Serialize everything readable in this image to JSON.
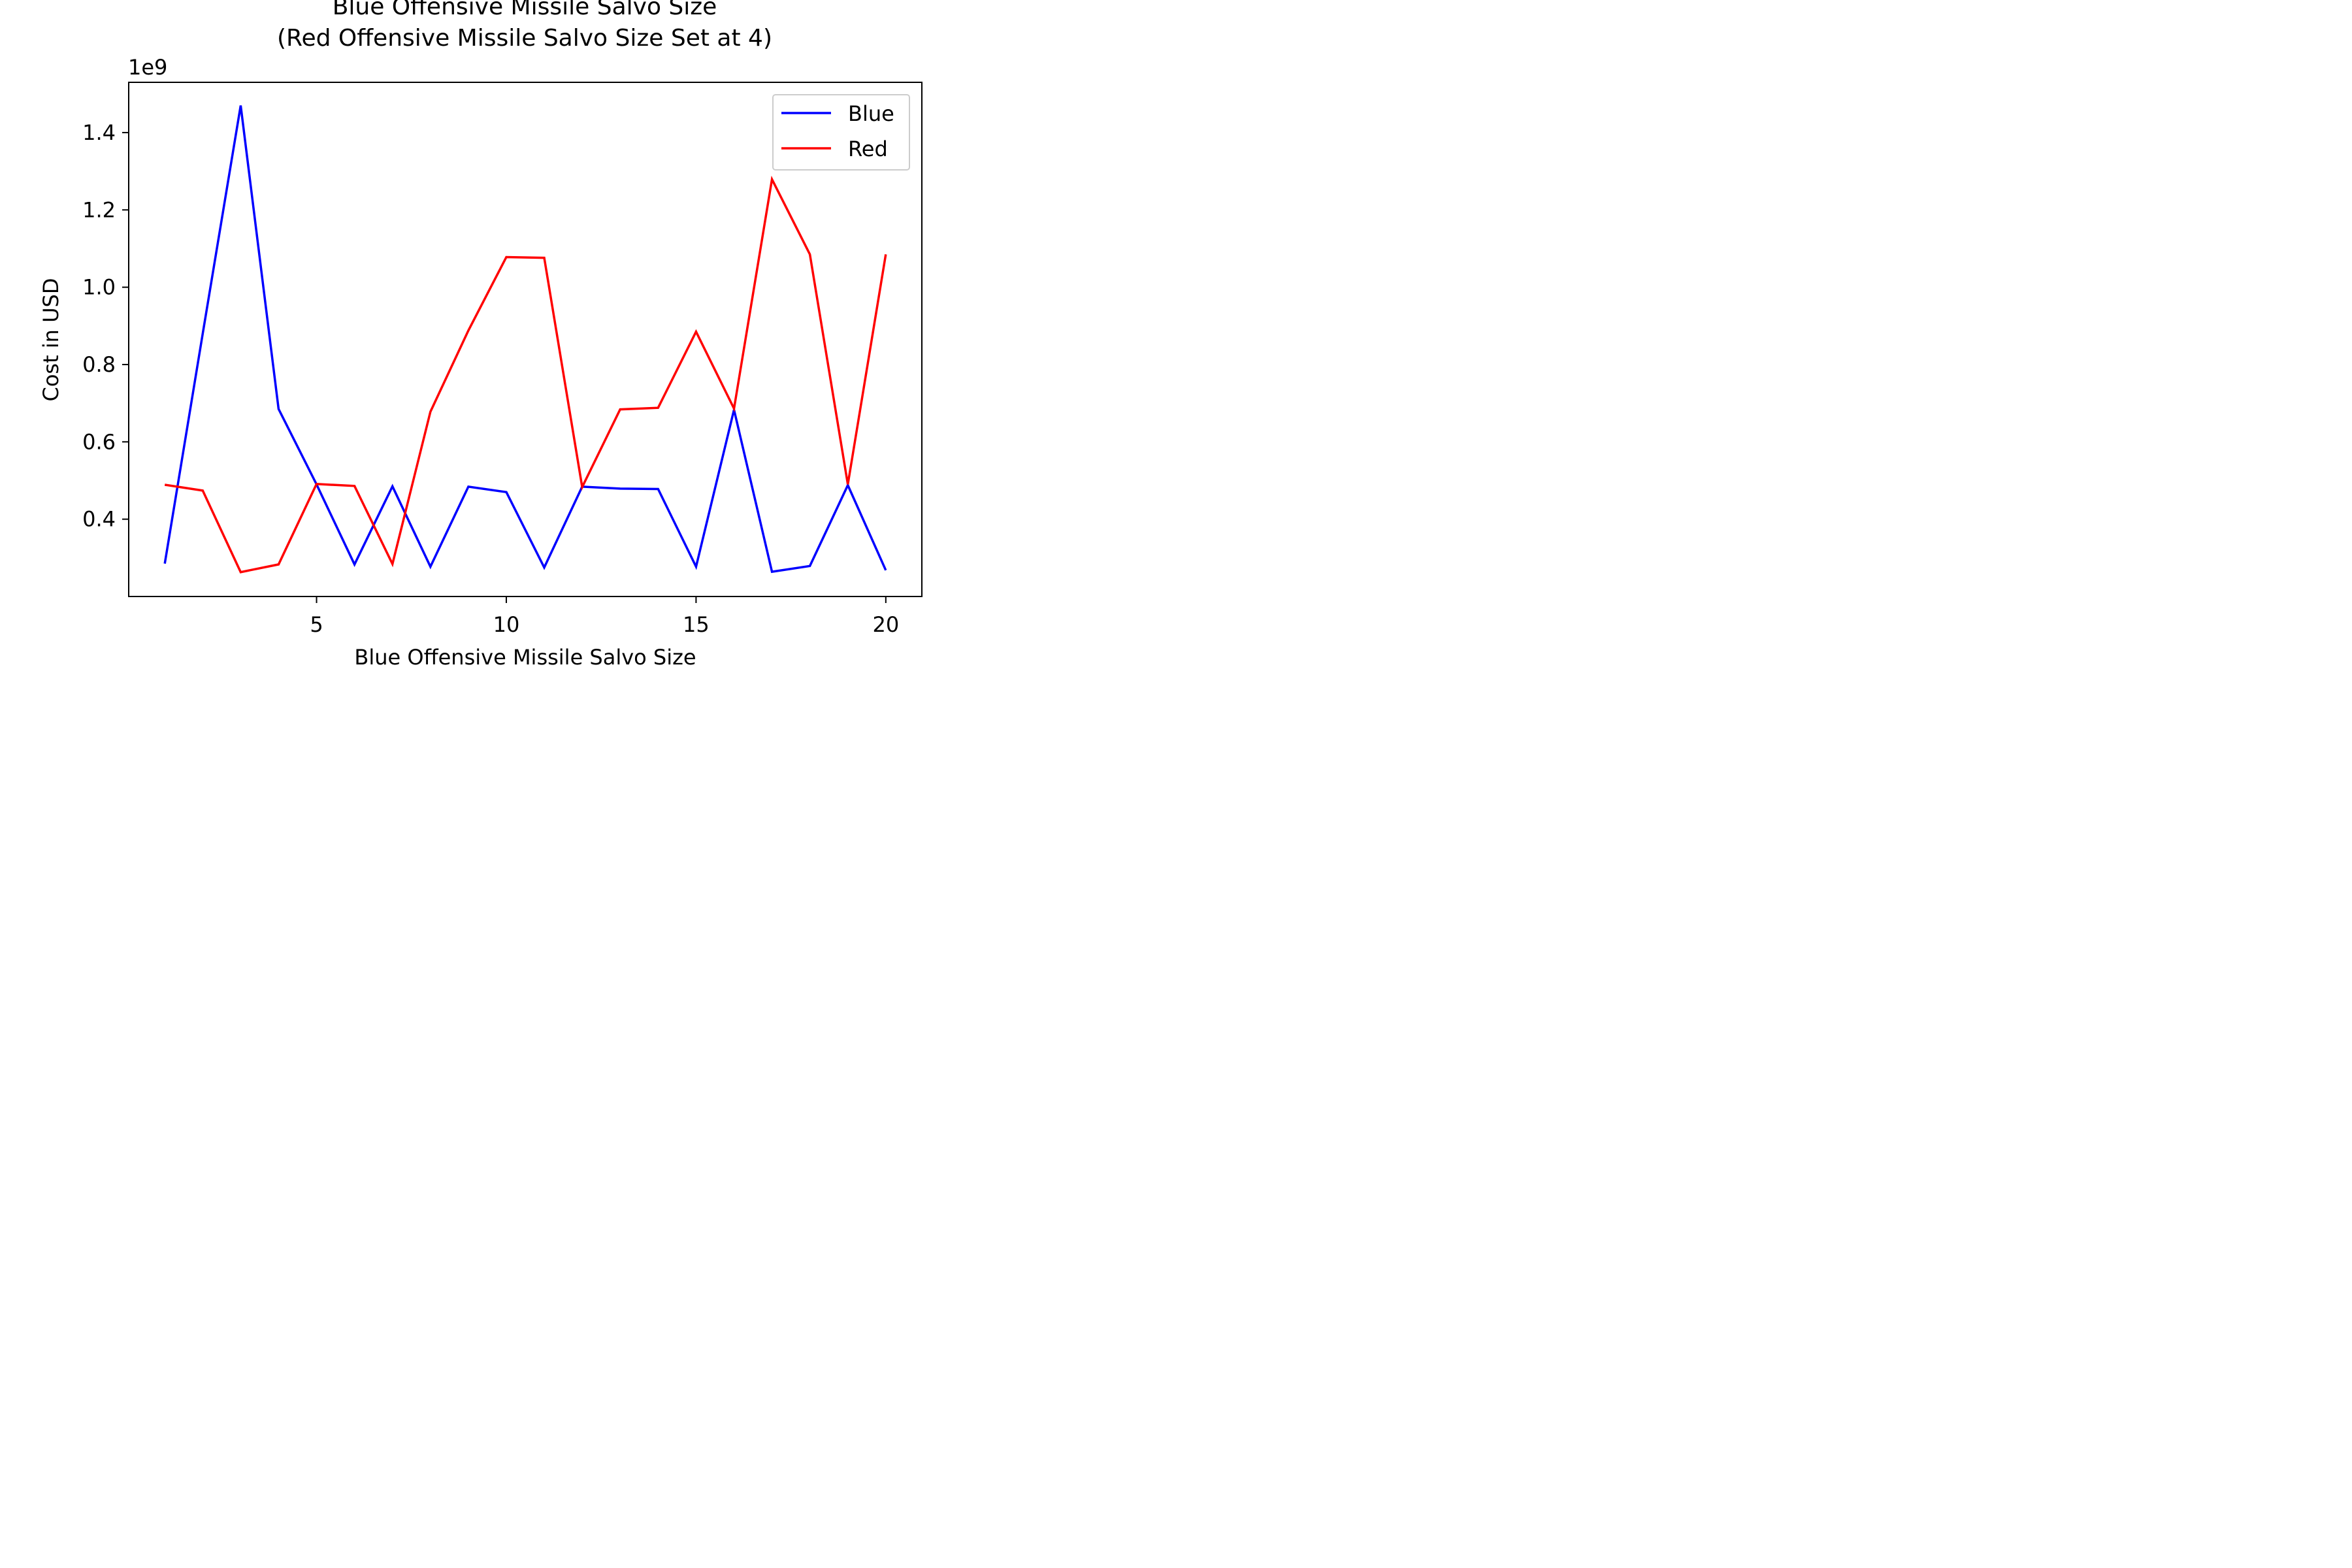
{
  "chart_data": {
    "type": "line",
    "title_lines": [
      "Blue Offensive Missile Salvo Size",
      "(Red Offensive Missile Salvo Size Set at 4)"
    ],
    "xlabel": "Blue Offensive Missile Salvo Size",
    "ylabel": "Cost in USD",
    "y_offset_label": "1e9",
    "xlim": [
      0.05,
      20.95
    ],
    "ylim": [
      0.2,
      1.53
    ],
    "x_ticks": [
      5,
      10,
      15,
      20
    ],
    "y_ticks": [
      0.4,
      0.6,
      0.8,
      1.0,
      1.2,
      1.4
    ],
    "x_tick_labels": [
      "5",
      "10",
      "15",
      "20"
    ],
    "y_tick_labels": [
      "0.4",
      "0.6",
      "0.8",
      "1.0",
      "1.2",
      "1.4"
    ],
    "grid": false,
    "legend_position": "top-right",
    "x": [
      1,
      2,
      3,
      4,
      5,
      6,
      7,
      8,
      9,
      10,
      11,
      12,
      13,
      14,
      15,
      16,
      17,
      18,
      19,
      20
    ],
    "series": [
      {
        "name": "Blue",
        "color": "#0000ff",
        "values": [
          0.285,
          0.88,
          1.47,
          0.685,
          0.49,
          0.283,
          0.485,
          0.277,
          0.484,
          0.47,
          0.275,
          0.484,
          0.479,
          0.478,
          0.277,
          0.683,
          0.264,
          0.279,
          0.488,
          0.268
        ]
      },
      {
        "name": "Red",
        "color": "#ff0000",
        "values": [
          0.489,
          0.474,
          0.263,
          0.283,
          0.491,
          0.486,
          0.284,
          0.678,
          0.888,
          1.078,
          1.076,
          0.483,
          0.684,
          0.688,
          0.885,
          0.686,
          1.279,
          1.085,
          0.49,
          1.085
        ]
      }
    ]
  }
}
